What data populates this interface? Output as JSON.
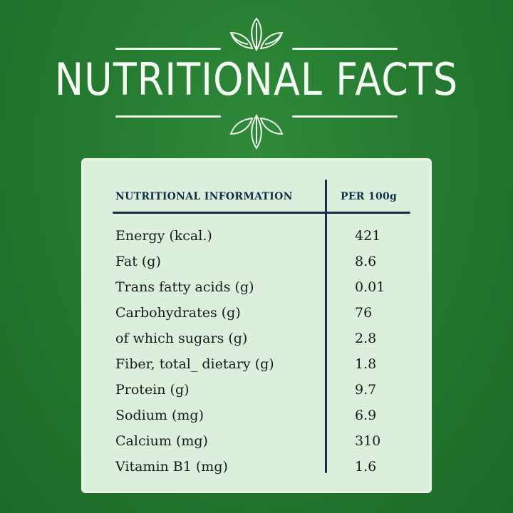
{
  "title": "Nutritional Facts",
  "table": {
    "header_left": "NUTRITIONAL INFORMATION",
    "header_right": "PER 100g",
    "rows": [
      {
        "name": "Energy (kcal.)",
        "value": "421"
      },
      {
        "name": "Fat (g)",
        "value": "8.6"
      },
      {
        "name": "Trans fatty acids  (g)",
        "value": "0.01"
      },
      {
        "name": "Carbohydrates (g)",
        "value": "76"
      },
      {
        "name": "of which sugars (g)",
        "value": "2.8"
      },
      {
        "name": "Fiber, total_ dietary (g)",
        "value": "1.8"
      },
      {
        "name": "Protein (g)",
        "value": "9.7"
      },
      {
        "name": "Sodium (mg)",
        "value": "6.9"
      },
      {
        "name": "Calcium (mg)",
        "value": "310"
      },
      {
        "name": "Vitamin B1 (mg)",
        "value": "1.6"
      }
    ]
  },
  "colors": {
    "background": "#257a30",
    "card": "#dcefdc",
    "ink": "#0f2f47",
    "title": "#f4fbf2"
  },
  "decorations": {
    "leaf_icon": "leaf-cluster-icon"
  }
}
